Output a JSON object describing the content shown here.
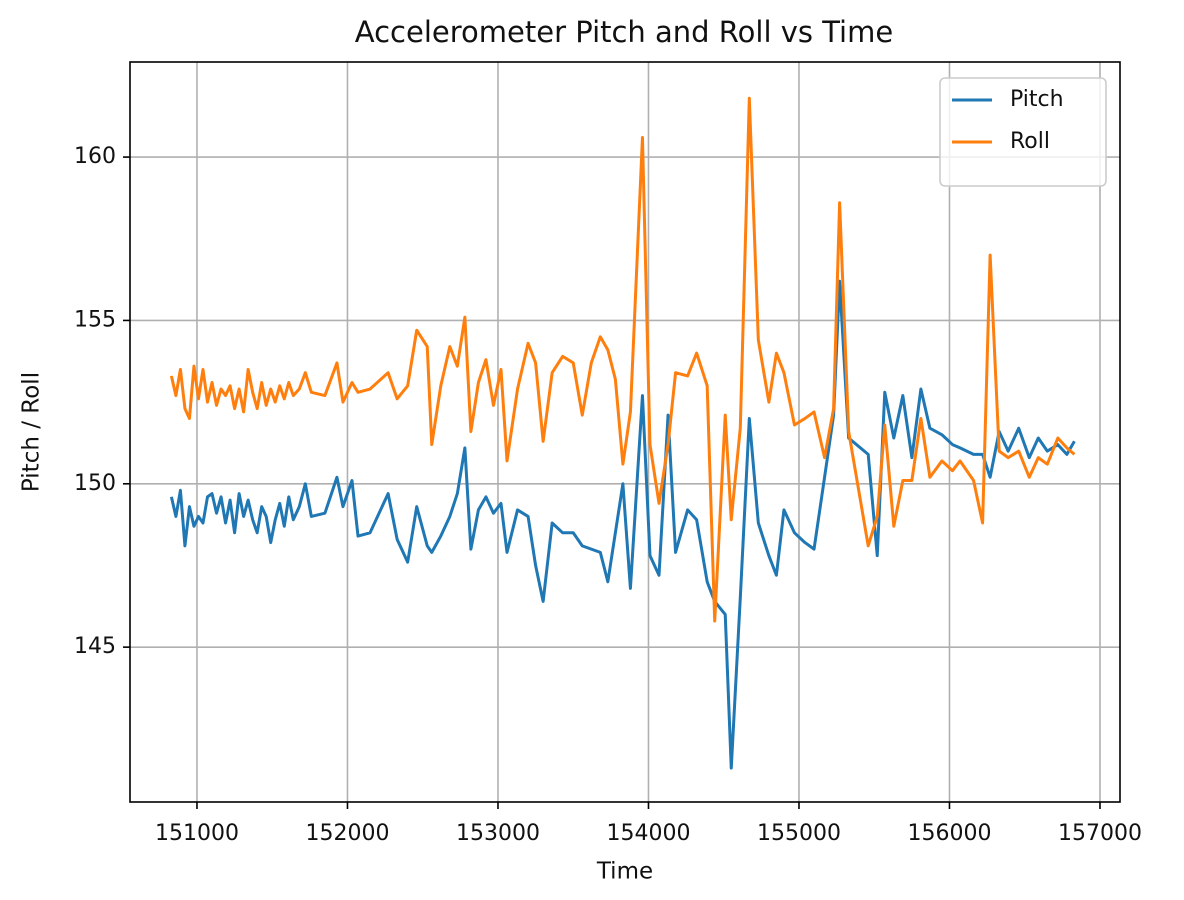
{
  "chart_data": {
    "type": "line",
    "title": "Accelerometer Pitch and Roll vs Time",
    "x_label": "Time",
    "y_label": "Pitch / Roll",
    "x": [
      150830,
      150860,
      150890,
      150920,
      150950,
      150980,
      151010,
      151040,
      151070,
      151100,
      151130,
      151160,
      151190,
      151220,
      151250,
      151280,
      151310,
      151340,
      151370,
      151400,
      151430,
      151460,
      151490,
      151520,
      151550,
      151580,
      151610,
      151640,
      151680,
      151720,
      151760,
      151850,
      151930,
      151970,
      152030,
      152070,
      152150,
      152270,
      152330,
      152400,
      152460,
      152530,
      152560,
      152620,
      152680,
      152730,
      152780,
      152820,
      152870,
      152920,
      152970,
      153020,
      153060,
      153130,
      153200,
      153250,
      153300,
      153360,
      153430,
      153500,
      153560,
      153620,
      153680,
      153730,
      153780,
      153830,
      153880,
      153960,
      154010,
      154070,
      154130,
      154180,
      154260,
      154320,
      154390,
      154440,
      154510,
      154550,
      154610,
      154670,
      154730,
      154800,
      154850,
      154900,
      154970,
      155040,
      155100,
      155170,
      155230,
      155270,
      155330,
      155460,
      155520,
      155570,
      155630,
      155690,
      155750,
      155810,
      155870,
      155950,
      156020,
      156070,
      156160,
      156220,
      156270,
      156330,
      156390,
      156460,
      156530,
      156590,
      156650,
      156720,
      156780,
      156830
    ],
    "series": [
      {
        "name": "Pitch",
        "color": "#1f77b4",
        "values": [
          149.6,
          149.0,
          149.8,
          148.1,
          149.3,
          148.7,
          149.0,
          148.8,
          149.6,
          149.7,
          149.1,
          149.6,
          148.8,
          149.5,
          148.5,
          149.7,
          149.0,
          149.5,
          148.9,
          148.5,
          149.3,
          149.0,
          148.2,
          148.9,
          149.4,
          148.7,
          149.6,
          148.9,
          149.3,
          150.0,
          149.0,
          149.1,
          150.2,
          149.3,
          150.1,
          148.4,
          148.5,
          149.7,
          148.3,
          147.6,
          149.3,
          148.1,
          147.9,
          148.4,
          149.0,
          149.7,
          151.1,
          148.0,
          149.2,
          149.6,
          149.1,
          149.4,
          147.9,
          149.2,
          149.0,
          147.5,
          146.4,
          148.8,
          148.5,
          148.5,
          148.1,
          148.0,
          147.9,
          147.0,
          148.5,
          150.0,
          146.8,
          152.7,
          147.8,
          147.2,
          152.1,
          147.9,
          149.2,
          148.9,
          147.0,
          146.4,
          146.0,
          141.3,
          146.5,
          152.0,
          148.8,
          147.8,
          147.2,
          149.2,
          148.5,
          148.2,
          148.0,
          150.2,
          152.1,
          156.2,
          151.4,
          150.9,
          147.8,
          152.8,
          151.4,
          152.7,
          150.8,
          152.9,
          151.7,
          151.5,
          151.2,
          151.1,
          150.9,
          150.9,
          150.2,
          151.6,
          151.0,
          151.7,
          150.8,
          151.4,
          151.0,
          151.2,
          150.9,
          151.3
        ]
      },
      {
        "name": "Roll",
        "color": "#ff7f0e",
        "values": [
          153.3,
          152.7,
          153.5,
          152.3,
          152.0,
          153.6,
          152.6,
          153.5,
          152.5,
          153.1,
          152.4,
          152.9,
          152.7,
          153.0,
          152.3,
          152.9,
          152.2,
          153.5,
          152.8,
          152.3,
          153.1,
          152.4,
          152.9,
          152.5,
          153.0,
          152.6,
          153.1,
          152.7,
          152.9,
          153.4,
          152.8,
          152.7,
          153.7,
          152.5,
          153.1,
          152.8,
          152.9,
          153.4,
          152.6,
          153.0,
          154.7,
          154.2,
          151.2,
          153.0,
          154.2,
          153.6,
          155.1,
          151.6,
          153.1,
          153.8,
          152.4,
          153.5,
          150.7,
          152.9,
          154.3,
          153.7,
          151.3,
          153.4,
          153.9,
          153.7,
          152.1,
          153.7,
          154.5,
          154.1,
          153.2,
          150.6,
          152.2,
          160.6,
          151.2,
          149.4,
          151.2,
          153.4,
          153.3,
          154.0,
          153.0,
          145.8,
          152.1,
          148.9,
          151.7,
          161.8,
          154.4,
          152.5,
          154.0,
          153.4,
          151.8,
          152.0,
          152.2,
          150.8,
          152.3,
          158.6,
          151.6,
          148.1,
          149.0,
          151.8,
          148.7,
          150.1,
          150.1,
          152.0,
          150.2,
          150.7,
          150.4,
          150.7,
          150.1,
          148.8,
          157.0,
          151.0,
          150.8,
          151.0,
          150.2,
          150.8,
          150.6,
          151.4,
          151.1,
          150.9
        ]
      }
    ],
    "xlim": [
      150555,
      157133
    ],
    "xticks": [
      151000,
      152000,
      153000,
      154000,
      155000,
      156000,
      157000
    ],
    "ylim": [
      140.26,
      162.91
    ],
    "yticks": [
      145,
      150,
      155,
      160
    ],
    "grid": true,
    "legend": "upper right"
  }
}
